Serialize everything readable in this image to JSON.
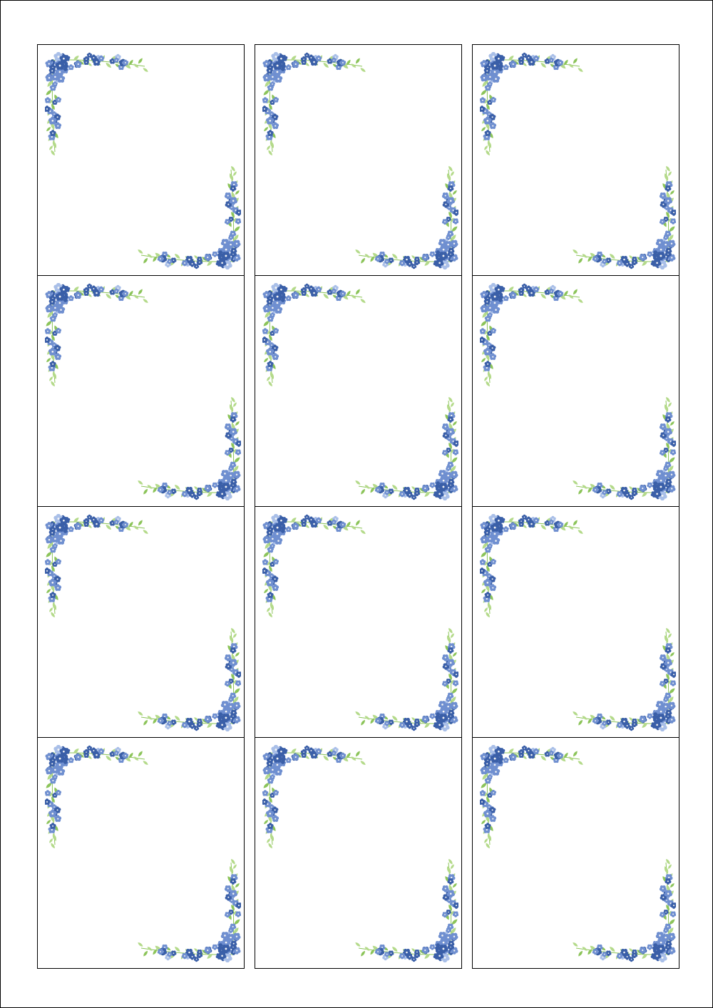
{
  "sheet": {
    "rows": 4,
    "columns": 3,
    "card_count": 12
  },
  "colors": {
    "border": "#000000",
    "background": "#ffffff",
    "flower_dark": "#3a5fa8",
    "flower_mid": "#6f8fd0",
    "flower_light": "#a9bfe8",
    "flower_center": "#f4f4f4",
    "leaf": "#8cc45a",
    "leaf_light": "#b4da8a"
  },
  "decoration": {
    "icon": "floral-corner-icon",
    "placement": [
      "top-left",
      "bottom-right"
    ]
  }
}
